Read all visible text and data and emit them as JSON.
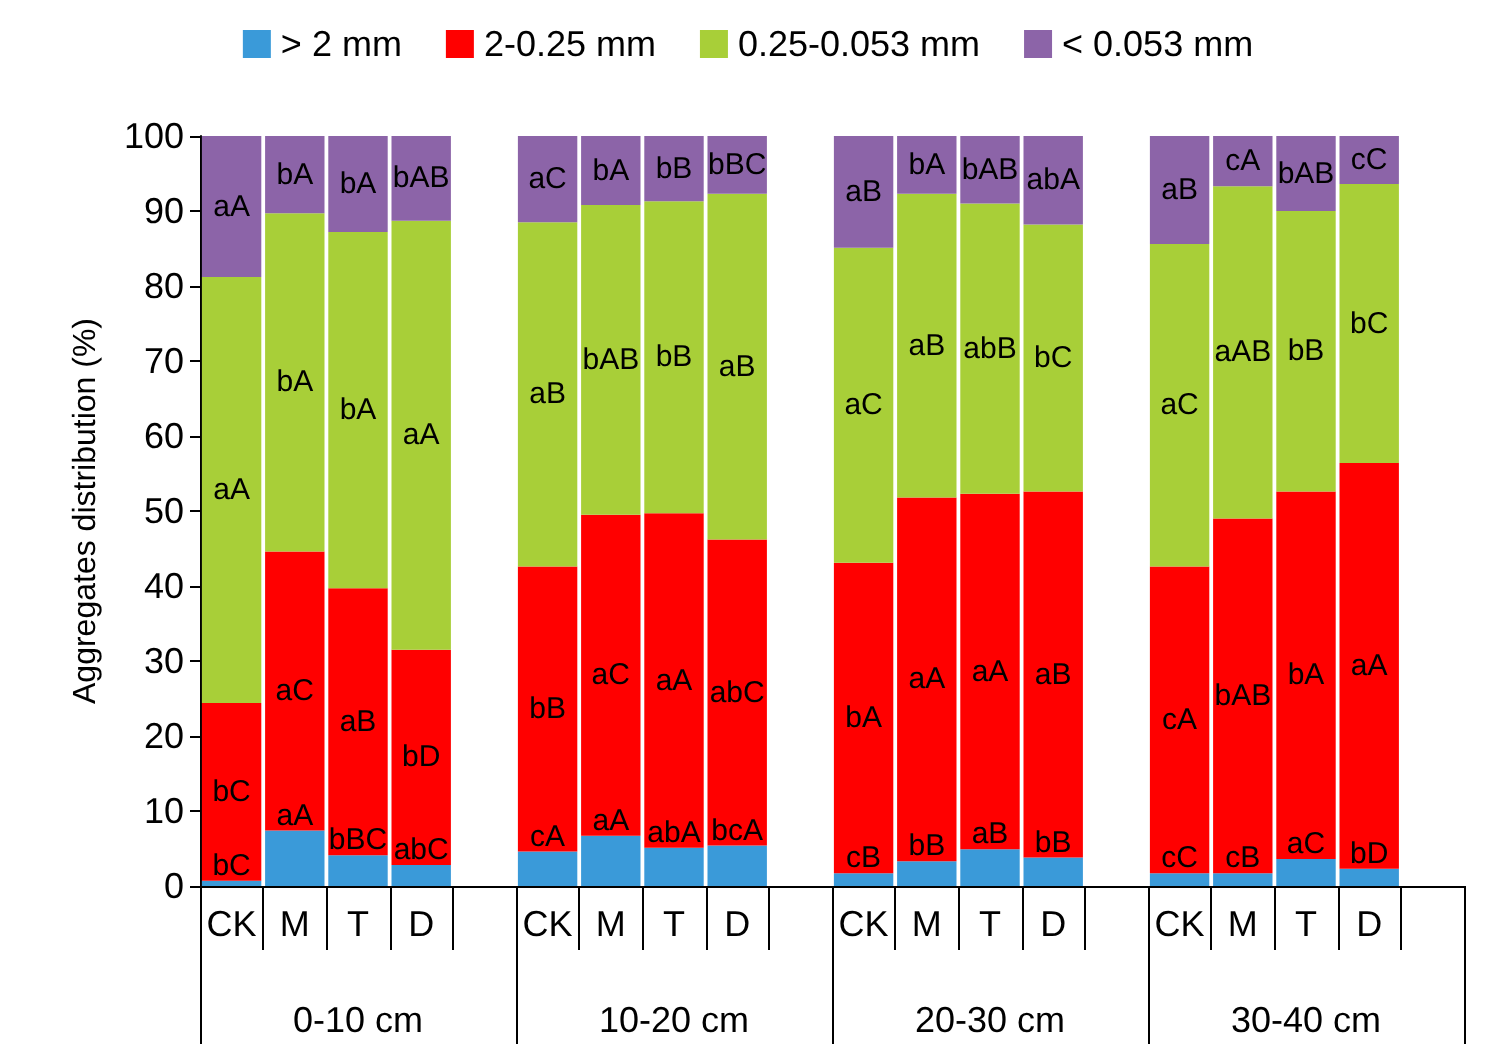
{
  "chart_data": {
    "type": "bar",
    "stacked": true,
    "ylabel": "Aggregates distribution (%)",
    "categories": [
      "CK",
      "M",
      "T",
      "D",
      null,
      "CK",
      "M",
      "T",
      "D",
      null,
      "CK",
      "M",
      "T",
      "D",
      null,
      "CK",
      "M",
      "T",
      "D",
      null
    ],
    "annotations": [
      "0-10 cm",
      "10-20 cm",
      "20-30 cm",
      "30-40 cm"
    ],
    "series": [
      {
        "name": "> 2 mm",
        "color": "#3a9ad9",
        "values": [
          0.7,
          7.4,
          4.1,
          2.8,
          null,
          4.6,
          6.7,
          5.1,
          5.4,
          null,
          1.7,
          3.3,
          4.9,
          3.8,
          null,
          1.7,
          1.7,
          3.6,
          2.3,
          null
        ],
        "value_labels": [
          "bC",
          "aA",
          "bBC",
          "abC",
          null,
          "cA",
          "aA",
          "abA",
          "bcA",
          null,
          "cB",
          "bB",
          "aB",
          "bB",
          null,
          "cC",
          "cB",
          "aC",
          "bD",
          null
        ]
      },
      {
        "name": "2-0.25 mm",
        "color": "#ff0000",
        "values": [
          23.7,
          37.2,
          35.6,
          28.7,
          null,
          38.0,
          42.8,
          44.6,
          40.8,
          null,
          41.4,
          48.5,
          47.4,
          48.8,
          null,
          40.9,
          47.3,
          49.0,
          54.1,
          null
        ],
        "value_labels": [
          "bC",
          "aC",
          "aB",
          "bD",
          null,
          "bB",
          "aC",
          "aA",
          "abC",
          null,
          "bA",
          "aA",
          "aA",
          "aB",
          null,
          "cA",
          "bAB",
          "bA",
          "aA",
          null
        ]
      },
      {
        "name": "0.25-0.053 mm",
        "color": "#a8cf38",
        "values": [
          56.8,
          45.1,
          47.5,
          57.2,
          null,
          45.9,
          41.3,
          41.6,
          46.1,
          null,
          42.0,
          40.5,
          38.7,
          35.6,
          null,
          43.0,
          44.3,
          37.4,
          37.2,
          null
        ],
        "value_labels": [
          "aA",
          "bA",
          "bA",
          "aA",
          null,
          "aB",
          "bAB",
          "bB",
          "aB",
          null,
          "aC",
          "aB",
          "abB",
          "bC",
          null,
          "aC",
          "aAB",
          "bB",
          "bC",
          null
        ]
      },
      {
        "name": "< 0.053 mm",
        "color": "#8c64a8",
        "values": [
          18.8,
          10.3,
          12.8,
          11.3,
          null,
          11.5,
          9.2,
          8.7,
          7.7,
          null,
          14.9,
          7.7,
          9.0,
          11.8,
          null,
          14.4,
          6.7,
          10.0,
          6.4,
          null
        ],
        "value_labels": [
          "aA",
          "bA",
          "bA",
          "bAB",
          null,
          "aC",
          "bA",
          "bB",
          "bBC",
          null,
          "aB",
          "bA",
          "bAB",
          "abA",
          null,
          "aB",
          "cA",
          "bAB",
          "cC",
          null
        ]
      }
    ],
    "ylim": [
      0,
      100
    ],
    "yticks": [
      0,
      10,
      20,
      30,
      40,
      50,
      60,
      70,
      80,
      90,
      100
    ],
    "grid": false,
    "legend": "top"
  }
}
